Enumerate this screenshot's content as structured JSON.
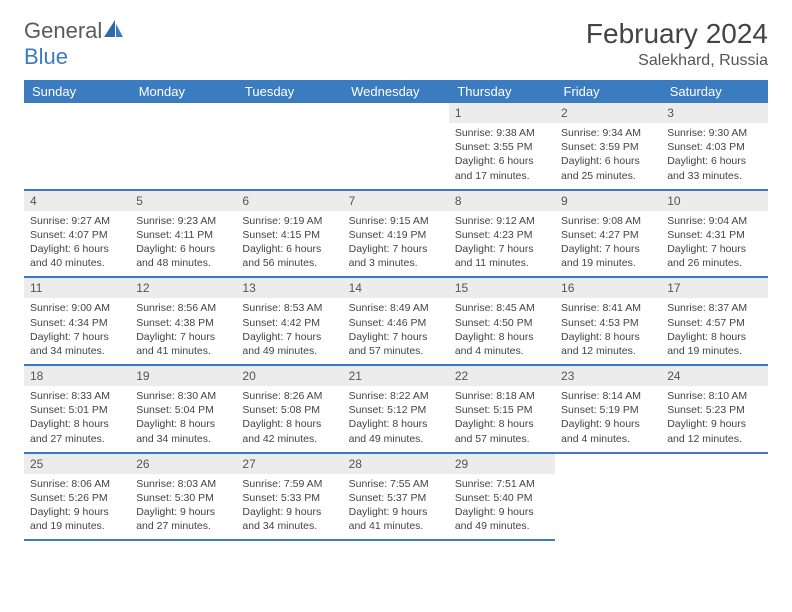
{
  "logo": {
    "text_gray": "General",
    "text_blue": "Blue"
  },
  "title": "February 2024",
  "location": "Salekhard, Russia",
  "colors": {
    "header_bg": "#3b7bbf",
    "header_text": "#ffffff",
    "daynum_bg": "#ececec",
    "row_divider": "#3b7bbf",
    "text": "#444444"
  },
  "day_headers": [
    "Sunday",
    "Monday",
    "Tuesday",
    "Wednesday",
    "Thursday",
    "Friday",
    "Saturday"
  ],
  "weeks": [
    [
      {
        "empty": true
      },
      {
        "empty": true
      },
      {
        "empty": true
      },
      {
        "empty": true
      },
      {
        "n": "1",
        "sr": "9:38 AM",
        "ss": "3:55 PM",
        "dl": "6 hours and 17 minutes."
      },
      {
        "n": "2",
        "sr": "9:34 AM",
        "ss": "3:59 PM",
        "dl": "6 hours and 25 minutes."
      },
      {
        "n": "3",
        "sr": "9:30 AM",
        "ss": "4:03 PM",
        "dl": "6 hours and 33 minutes."
      }
    ],
    [
      {
        "n": "4",
        "sr": "9:27 AM",
        "ss": "4:07 PM",
        "dl": "6 hours and 40 minutes."
      },
      {
        "n": "5",
        "sr": "9:23 AM",
        "ss": "4:11 PM",
        "dl": "6 hours and 48 minutes."
      },
      {
        "n": "6",
        "sr": "9:19 AM",
        "ss": "4:15 PM",
        "dl": "6 hours and 56 minutes."
      },
      {
        "n": "7",
        "sr": "9:15 AM",
        "ss": "4:19 PM",
        "dl": "7 hours and 3 minutes."
      },
      {
        "n": "8",
        "sr": "9:12 AM",
        "ss": "4:23 PM",
        "dl": "7 hours and 11 minutes."
      },
      {
        "n": "9",
        "sr": "9:08 AM",
        "ss": "4:27 PM",
        "dl": "7 hours and 19 minutes."
      },
      {
        "n": "10",
        "sr": "9:04 AM",
        "ss": "4:31 PM",
        "dl": "7 hours and 26 minutes."
      }
    ],
    [
      {
        "n": "11",
        "sr": "9:00 AM",
        "ss": "4:34 PM",
        "dl": "7 hours and 34 minutes."
      },
      {
        "n": "12",
        "sr": "8:56 AM",
        "ss": "4:38 PM",
        "dl": "7 hours and 41 minutes."
      },
      {
        "n": "13",
        "sr": "8:53 AM",
        "ss": "4:42 PM",
        "dl": "7 hours and 49 minutes."
      },
      {
        "n": "14",
        "sr": "8:49 AM",
        "ss": "4:46 PM",
        "dl": "7 hours and 57 minutes."
      },
      {
        "n": "15",
        "sr": "8:45 AM",
        "ss": "4:50 PM",
        "dl": "8 hours and 4 minutes."
      },
      {
        "n": "16",
        "sr": "8:41 AM",
        "ss": "4:53 PM",
        "dl": "8 hours and 12 minutes."
      },
      {
        "n": "17",
        "sr": "8:37 AM",
        "ss": "4:57 PM",
        "dl": "8 hours and 19 minutes."
      }
    ],
    [
      {
        "n": "18",
        "sr": "8:33 AM",
        "ss": "5:01 PM",
        "dl": "8 hours and 27 minutes."
      },
      {
        "n": "19",
        "sr": "8:30 AM",
        "ss": "5:04 PM",
        "dl": "8 hours and 34 minutes."
      },
      {
        "n": "20",
        "sr": "8:26 AM",
        "ss": "5:08 PM",
        "dl": "8 hours and 42 minutes."
      },
      {
        "n": "21",
        "sr": "8:22 AM",
        "ss": "5:12 PM",
        "dl": "8 hours and 49 minutes."
      },
      {
        "n": "22",
        "sr": "8:18 AM",
        "ss": "5:15 PM",
        "dl": "8 hours and 57 minutes."
      },
      {
        "n": "23",
        "sr": "8:14 AM",
        "ss": "5:19 PM",
        "dl": "9 hours and 4 minutes."
      },
      {
        "n": "24",
        "sr": "8:10 AM",
        "ss": "5:23 PM",
        "dl": "9 hours and 12 minutes."
      }
    ],
    [
      {
        "n": "25",
        "sr": "8:06 AM",
        "ss": "5:26 PM",
        "dl": "9 hours and 19 minutes."
      },
      {
        "n": "26",
        "sr": "8:03 AM",
        "ss": "5:30 PM",
        "dl": "9 hours and 27 minutes."
      },
      {
        "n": "27",
        "sr": "7:59 AM",
        "ss": "5:33 PM",
        "dl": "9 hours and 34 minutes."
      },
      {
        "n": "28",
        "sr": "7:55 AM",
        "ss": "5:37 PM",
        "dl": "9 hours and 41 minutes."
      },
      {
        "n": "29",
        "sr": "7:51 AM",
        "ss": "5:40 PM",
        "dl": "9 hours and 49 minutes."
      },
      {
        "empty": true
      },
      {
        "empty": true
      }
    ]
  ],
  "labels": {
    "sunrise": "Sunrise: ",
    "sunset": "Sunset: ",
    "daylight": "Daylight: "
  }
}
